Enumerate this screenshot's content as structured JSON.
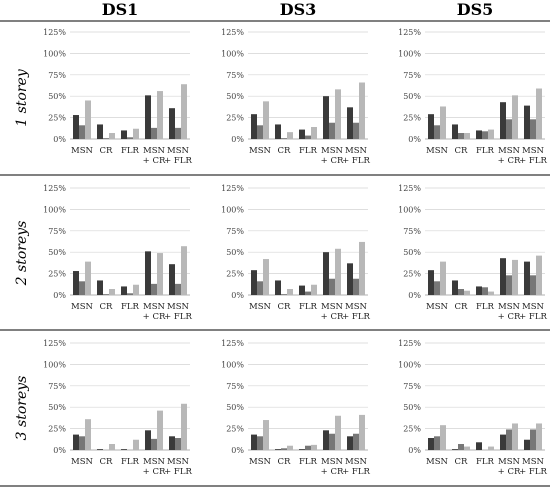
{
  "columns": [
    "DS1",
    "DS3",
    "DS5"
  ],
  "rows": [
    "1 storey",
    "2 storeys",
    "3 storeys"
  ],
  "colors": {
    "s1": "#3a3a3a",
    "s2": "#777777",
    "s3": "#b8b8b8"
  },
  "chart_data": {
    "type": "bar",
    "categories": [
      [
        "MSN"
      ],
      [
        "CR"
      ],
      [
        "FLR"
      ],
      [
        "MSN",
        "+ CR"
      ],
      [
        "MSN",
        "+ FLR"
      ]
    ],
    "yticks": [
      "0%",
      "25%",
      "50%",
      "75%",
      "100%",
      "125%"
    ],
    "ylim": [
      0,
      125
    ],
    "grid": true,
    "panels": [
      {
        "row": "1 storey",
        "column": "DS1",
        "series": [
          [
            28,
            17,
            10,
            51,
            36
          ],
          [
            16,
            1,
            2,
            13,
            13
          ],
          [
            45,
            7,
            12,
            56,
            64
          ]
        ]
      },
      {
        "row": "1 storey",
        "column": "DS3",
        "series": [
          [
            29,
            17,
            11,
            50,
            37
          ],
          [
            16,
            1,
            4,
            19,
            19
          ],
          [
            44,
            8,
            14,
            58,
            66
          ]
        ]
      },
      {
        "row": "1 storey",
        "column": "DS5",
        "series": [
          [
            29,
            17,
            10,
            43,
            39
          ],
          [
            16,
            7,
            9,
            23,
            23
          ],
          [
            38,
            7,
            11,
            51,
            59
          ]
        ]
      },
      {
        "row": "2 storeys",
        "column": "DS1",
        "series": [
          [
            28,
            17,
            10,
            51,
            36
          ],
          [
            16,
            1,
            2,
            13,
            13
          ],
          [
            39,
            7,
            12,
            49,
            57
          ]
        ]
      },
      {
        "row": "2 storeys",
        "column": "DS3",
        "series": [
          [
            29,
            17,
            11,
            50,
            37
          ],
          [
            16,
            1,
            4,
            19,
            19
          ],
          [
            42,
            7,
            12,
            54,
            62
          ]
        ]
      },
      {
        "row": "2 storeys",
        "column": "DS5",
        "series": [
          [
            29,
            17,
            10,
            43,
            39
          ],
          [
            16,
            7,
            9,
            23,
            23
          ],
          [
            39,
            5,
            4,
            41,
            46
          ]
        ]
      },
      {
        "row": "3 storeys",
        "column": "DS1",
        "series": [
          [
            18,
            1,
            1,
            23,
            16
          ],
          [
            16,
            0,
            0,
            13,
            14
          ],
          [
            36,
            7,
            12,
            46,
            54
          ]
        ]
      },
      {
        "row": "3 storeys",
        "column": "DS3",
        "series": [
          [
            18,
            1,
            1,
            23,
            16
          ],
          [
            16,
            2,
            5,
            19,
            19
          ],
          [
            35,
            5,
            6,
            40,
            41
          ]
        ]
      },
      {
        "row": "3 storeys",
        "column": "DS5",
        "series": [
          [
            14,
            1,
            9,
            18,
            12
          ],
          [
            16,
            7,
            0,
            24,
            24
          ],
          [
            29,
            4,
            4,
            31,
            31
          ]
        ]
      }
    ]
  }
}
